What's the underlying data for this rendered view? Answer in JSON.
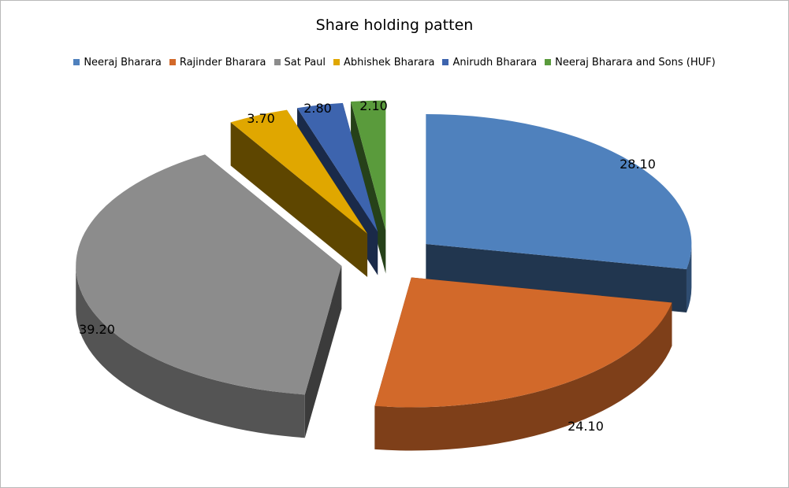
{
  "chart_data": {
    "type": "pie",
    "title": "Share holding patten",
    "legend_position": "top",
    "exploded": true,
    "style": "3d",
    "slices": [
      {
        "label": "Neeraj Bharara",
        "value": 28.1,
        "value_label": "28.10",
        "color": "#4F81BD"
      },
      {
        "label": "Rajinder Bharara",
        "value": 24.1,
        "value_label": "24.10",
        "color": "#D2692A"
      },
      {
        "label": "Sat Paul",
        "value": 39.2,
        "value_label": "39.20",
        "color": "#8C8C8C"
      },
      {
        "label": "Abhishek  Bharara",
        "value": 3.7,
        "value_label": "3.70",
        "color": "#E0A700"
      },
      {
        "label": "Anirudh  Bharara",
        "value": 2.8,
        "value_label": "2.80",
        "color": "#3D64AE"
      },
      {
        "label": "Neeraj Bharara and Sons (HUF)",
        "value": 2.1,
        "value_label": "2.10",
        "color": "#5A9B3C"
      }
    ]
  }
}
